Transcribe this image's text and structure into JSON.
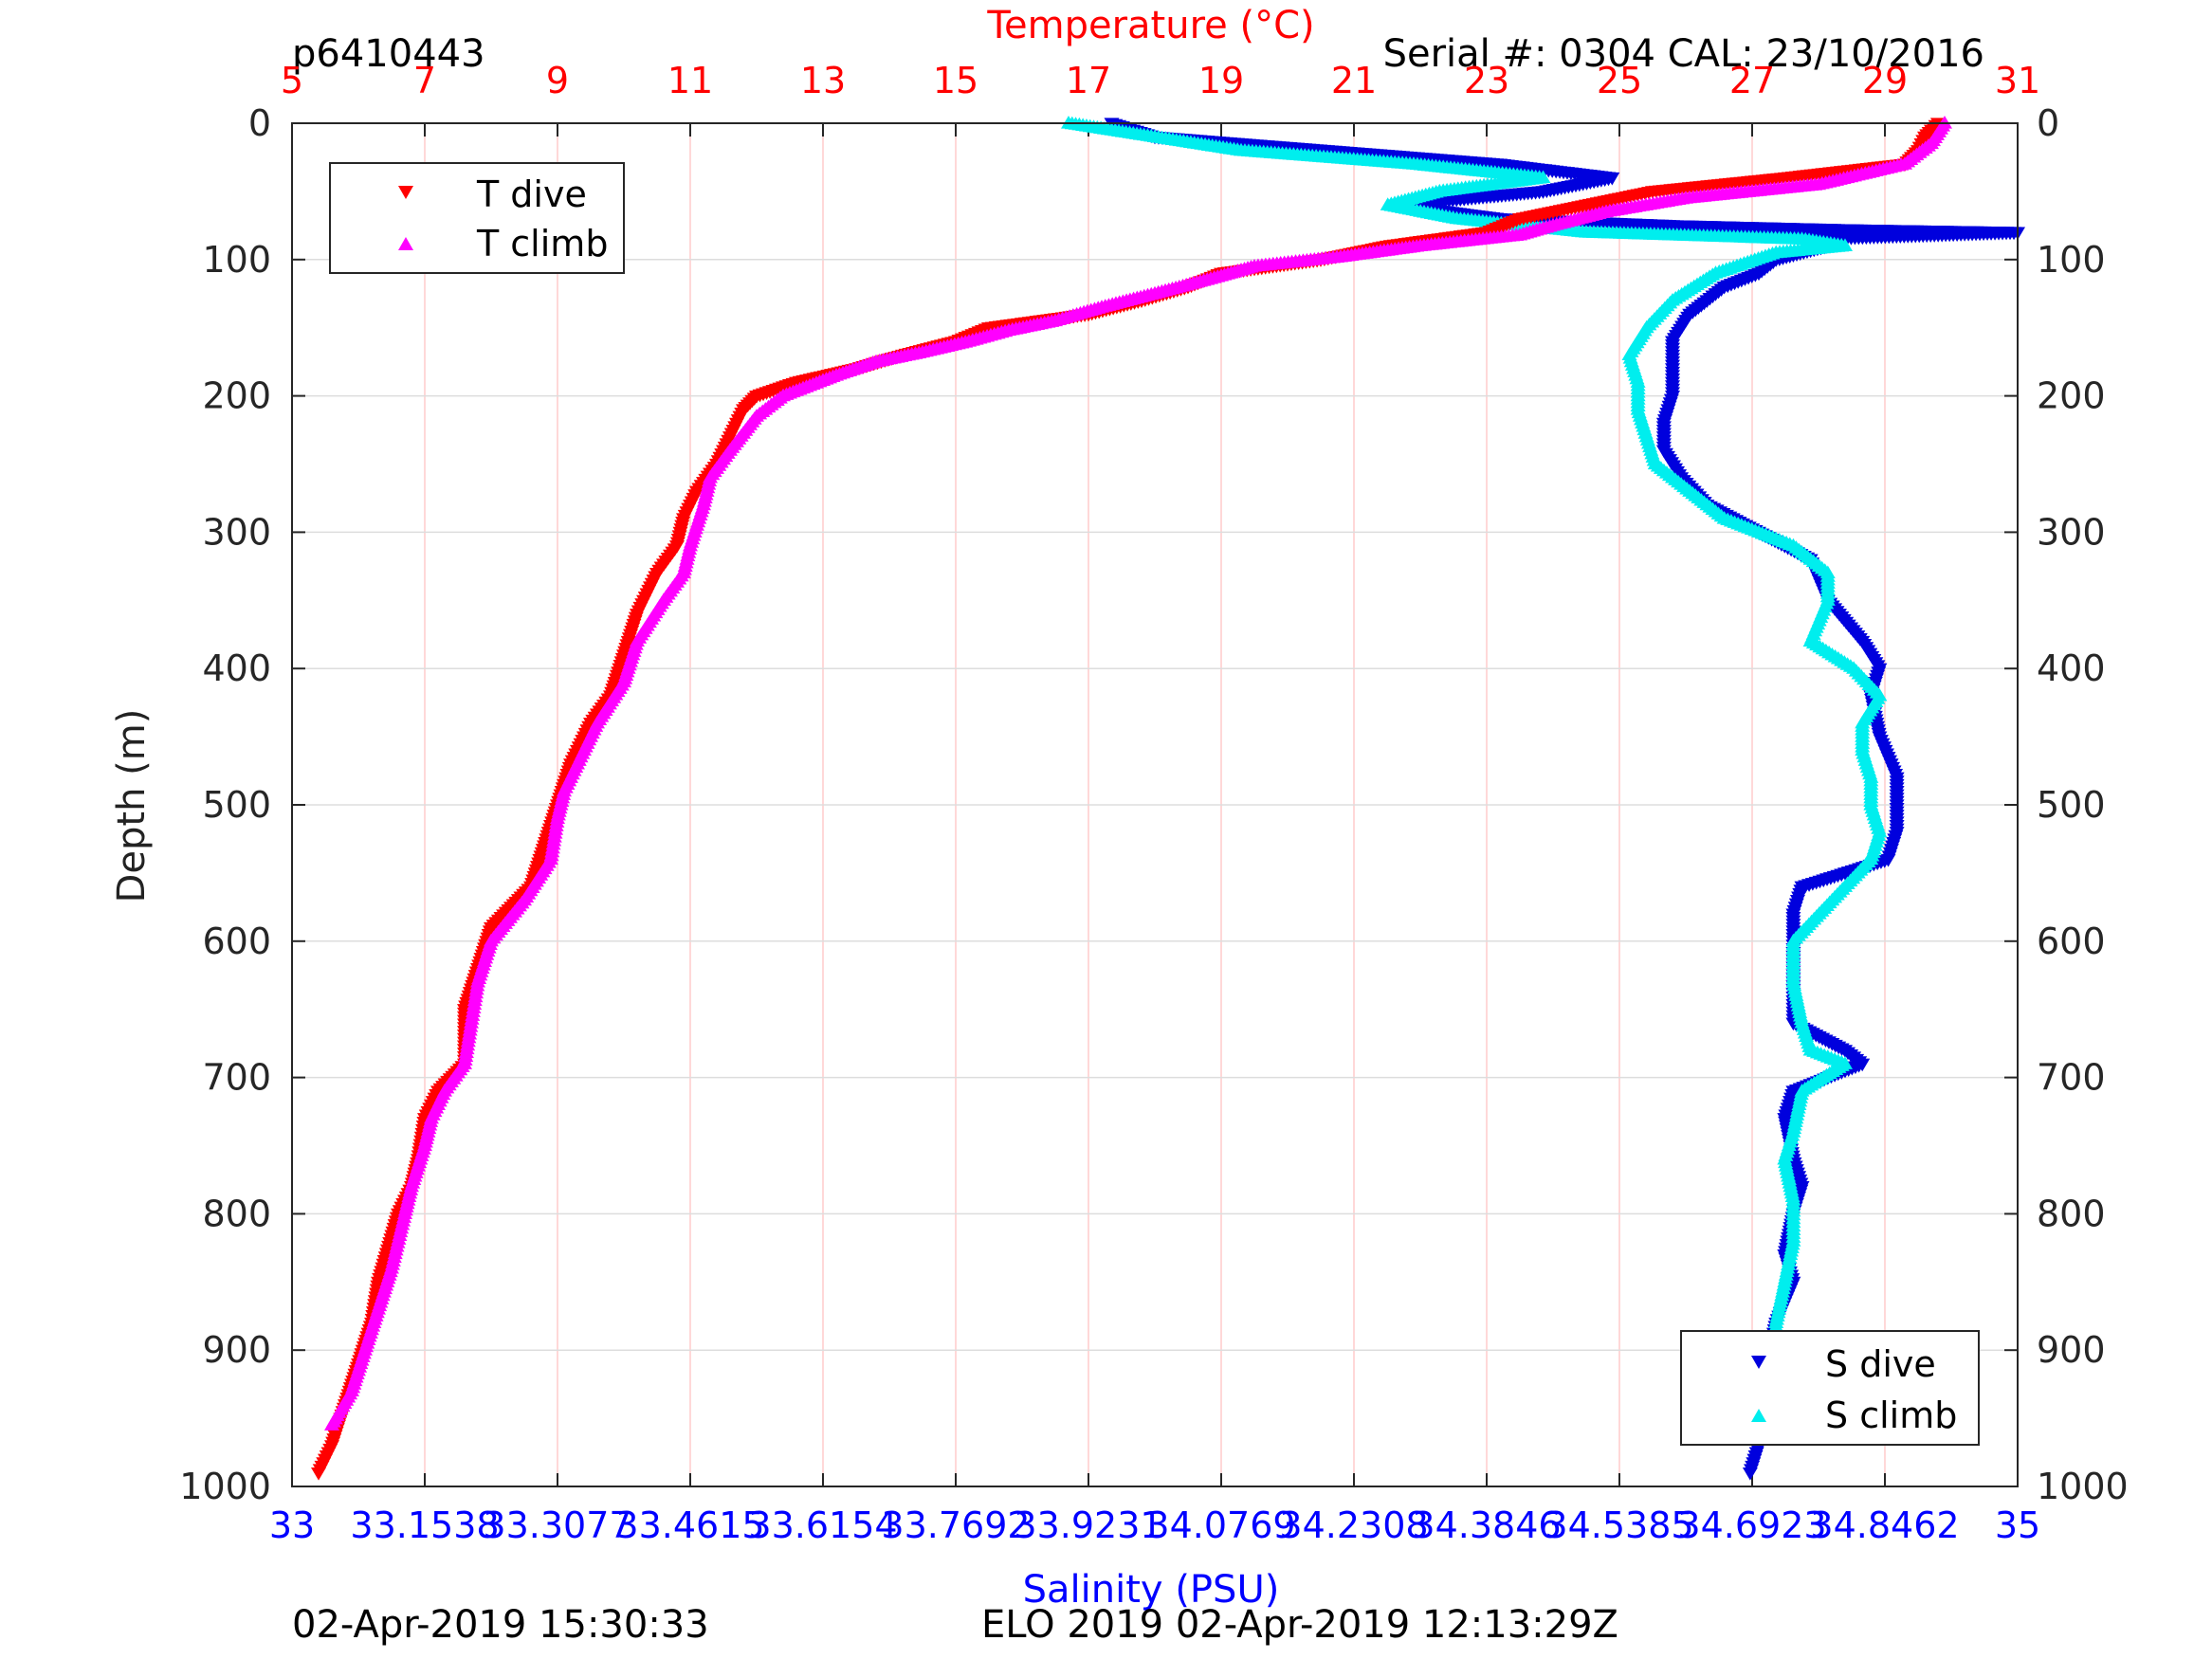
{
  "header": {
    "profile_id": "p6410443",
    "serial_cal": "Serial #: 0304  CAL: 23/10/2016"
  },
  "footer": {
    "left_timestamp": "02-Apr-2019 15:30:33",
    "center_text": "ELO 2019 02-Apr-2019 12:13:29Z"
  },
  "colors": {
    "temperature_axis": "#ff0000",
    "salinity_axis": "#0000ff",
    "t_dive": "#ff0000",
    "t_climb": "#ff00ff",
    "s_dive": "#0000dd",
    "s_climb": "#00eeee",
    "grid_vertical": "#ffcccc",
    "grid_horizontal": "#dddddd"
  },
  "chart_data": {
    "type": "scatter",
    "x_top_label": "Temperature (°C)",
    "x_top_range": [
      5,
      31
    ],
    "x_top_ticks": [
      "5",
      "7",
      "9",
      "11",
      "13",
      "15",
      "17",
      "19",
      "21",
      "23",
      "25",
      "27",
      "29",
      "31"
    ],
    "x_bottom_label": "Salinity (PSU)",
    "x_bottom_range": [
      33,
      35
    ],
    "x_bottom_ticks": [
      "33",
      "33.1538",
      "33.3077",
      "33.4615",
      "33.6154",
      "33.7692",
      "33.9231",
      "34.0769",
      "34.2308",
      "34.3846",
      "34.5385",
      "34.6923",
      "34.8462",
      "35"
    ],
    "y_label": "Depth (m)",
    "y_range": [
      0,
      1000
    ],
    "y_reversed": true,
    "y_ticks": [
      "0",
      "100",
      "200",
      "300",
      "400",
      "500",
      "600",
      "700",
      "800",
      "900",
      "1000"
    ],
    "grid": true,
    "legends": [
      {
        "position": "top-left",
        "entries": [
          "T dive",
          "T climb"
        ]
      },
      {
        "position": "bottom-right",
        "entries": [
          "S dive",
          "S climb"
        ]
      }
    ],
    "series": [
      {
        "name": "T dive",
        "axis": "temperature",
        "marker": "triangle-down",
        "points": [
          [
            29.8,
            0
          ],
          [
            29.6,
            10
          ],
          [
            29.5,
            20
          ],
          [
            29.3,
            30
          ],
          [
            27.5,
            40
          ],
          [
            25.5,
            50
          ],
          [
            24.5,
            60
          ],
          [
            23.5,
            70
          ],
          [
            23.0,
            80
          ],
          [
            21.5,
            90
          ],
          [
            20.5,
            100
          ],
          [
            19.0,
            110
          ],
          [
            18.5,
            120
          ],
          [
            17.8,
            130
          ],
          [
            17.0,
            140
          ],
          [
            15.5,
            150
          ],
          [
            15.0,
            160
          ],
          [
            14.2,
            170
          ],
          [
            13.5,
            180
          ],
          [
            12.6,
            190
          ],
          [
            12.0,
            200
          ],
          [
            11.8,
            210
          ],
          [
            11.6,
            230
          ],
          [
            11.4,
            250
          ],
          [
            11.1,
            270
          ],
          [
            10.9,
            290
          ],
          [
            10.8,
            310
          ],
          [
            10.5,
            330
          ],
          [
            10.2,
            360
          ],
          [
            10.0,
            390
          ],
          [
            9.8,
            420
          ],
          [
            9.5,
            440
          ],
          [
            9.2,
            470
          ],
          [
            9.0,
            500
          ],
          [
            8.8,
            530
          ],
          [
            8.6,
            560
          ],
          [
            8.0,
            590
          ],
          [
            7.8,
            620
          ],
          [
            7.6,
            650
          ],
          [
            7.6,
            690
          ],
          [
            7.2,
            710
          ],
          [
            7.0,
            730
          ],
          [
            6.9,
            760
          ],
          [
            6.8,
            780
          ],
          [
            6.6,
            800
          ],
          [
            6.3,
            850
          ],
          [
            6.2,
            880
          ],
          [
            6.0,
            910
          ],
          [
            5.8,
            940
          ],
          [
            5.6,
            970
          ],
          [
            5.4,
            990
          ]
        ]
      },
      {
        "name": "T climb",
        "axis": "temperature",
        "marker": "triangle-up",
        "points": [
          [
            29.9,
            0
          ],
          [
            29.7,
            15
          ],
          [
            29.3,
            30
          ],
          [
            28.0,
            45
          ],
          [
            26.0,
            55
          ],
          [
            24.8,
            65
          ],
          [
            24.0,
            75
          ],
          [
            23.5,
            82
          ],
          [
            22.0,
            90
          ],
          [
            20.8,
            98
          ],
          [
            19.5,
            105
          ],
          [
            19.0,
            112
          ],
          [
            18.0,
            125
          ],
          [
            17.2,
            135
          ],
          [
            16.5,
            145
          ],
          [
            15.8,
            152
          ],
          [
            15.2,
            160
          ],
          [
            14.5,
            168
          ],
          [
            13.8,
            175
          ],
          [
            13.2,
            185
          ],
          [
            12.4,
            200
          ],
          [
            12.0,
            215
          ],
          [
            11.6,
            240
          ],
          [
            11.3,
            260
          ],
          [
            11.2,
            280
          ],
          [
            11.0,
            310
          ],
          [
            10.9,
            330
          ],
          [
            10.6,
            350
          ],
          [
            10.2,
            380
          ],
          [
            10.0,
            410
          ],
          [
            9.6,
            440
          ],
          [
            9.4,
            460
          ],
          [
            9.1,
            490
          ],
          [
            9.0,
            510
          ],
          [
            8.9,
            540
          ],
          [
            8.5,
            570
          ],
          [
            8.0,
            600
          ],
          [
            7.8,
            630
          ],
          [
            7.7,
            660
          ],
          [
            7.6,
            690
          ],
          [
            7.3,
            710
          ],
          [
            7.1,
            730
          ],
          [
            7.0,
            750
          ],
          [
            6.8,
            780
          ],
          [
            6.7,
            800
          ],
          [
            6.5,
            840
          ],
          [
            6.3,
            870
          ],
          [
            6.1,
            900
          ],
          [
            5.9,
            930
          ],
          [
            5.6,
            955
          ]
        ]
      },
      {
        "name": "S dive",
        "axis": "salinity",
        "marker": "triangle-down",
        "points": [
          [
            33.95,
            0
          ],
          [
            34.0,
            10
          ],
          [
            34.2,
            20
          ],
          [
            34.4,
            30
          ],
          [
            34.53,
            40
          ],
          [
            34.45,
            50
          ],
          [
            34.28,
            60
          ],
          [
            34.4,
            70
          ],
          [
            34.6,
            75
          ],
          [
            34.8,
            78
          ],
          [
            35.0,
            80
          ],
          [
            34.75,
            85
          ],
          [
            34.78,
            90
          ],
          [
            34.72,
            100
          ],
          [
            34.7,
            110
          ],
          [
            34.66,
            120
          ],
          [
            34.62,
            140
          ],
          [
            34.6,
            160
          ],
          [
            34.6,
            180
          ],
          [
            34.6,
            200
          ],
          [
            34.59,
            220
          ],
          [
            34.59,
            240
          ],
          [
            34.61,
            260
          ],
          [
            34.64,
            280
          ],
          [
            34.7,
            300
          ],
          [
            34.76,
            320
          ],
          [
            34.78,
            350
          ],
          [
            34.82,
            380
          ],
          [
            34.84,
            400
          ],
          [
            34.83,
            420
          ],
          [
            34.84,
            450
          ],
          [
            34.86,
            480
          ],
          [
            34.86,
            500
          ],
          [
            34.86,
            520
          ],
          [
            34.85,
            540
          ],
          [
            34.75,
            560
          ],
          [
            34.74,
            580
          ],
          [
            34.74,
            600
          ],
          [
            34.74,
            630
          ],
          [
            34.74,
            660
          ],
          [
            34.8,
            680
          ],
          [
            34.82,
            690
          ],
          [
            34.74,
            710
          ],
          [
            34.73,
            730
          ],
          [
            34.74,
            760
          ],
          [
            34.75,
            780
          ],
          [
            34.74,
            800
          ],
          [
            34.73,
            830
          ],
          [
            34.74,
            850
          ],
          [
            34.72,
            880
          ],
          [
            34.71,
            910
          ],
          [
            34.7,
            940
          ],
          [
            34.7,
            970
          ],
          [
            34.69,
            990
          ]
        ]
      },
      {
        "name": "S climb",
        "axis": "salinity",
        "marker": "triangle-up",
        "points": [
          [
            33.9,
            0
          ],
          [
            34.0,
            10
          ],
          [
            34.1,
            20
          ],
          [
            34.3,
            30
          ],
          [
            34.45,
            40
          ],
          [
            34.33,
            50
          ],
          [
            34.27,
            60
          ],
          [
            34.35,
            70
          ],
          [
            34.5,
            80
          ],
          [
            34.75,
            85
          ],
          [
            34.8,
            90
          ],
          [
            34.72,
            95
          ],
          [
            34.65,
            110
          ],
          [
            34.6,
            130
          ],
          [
            34.57,
            150
          ],
          [
            34.55,
            170
          ],
          [
            34.56,
            190
          ],
          [
            34.56,
            210
          ],
          [
            34.57,
            230
          ],
          [
            34.58,
            250
          ],
          [
            34.62,
            270
          ],
          [
            34.66,
            290
          ],
          [
            34.74,
            310
          ],
          [
            34.78,
            330
          ],
          [
            34.78,
            350
          ],
          [
            34.76,
            380
          ],
          [
            34.81,
            400
          ],
          [
            34.84,
            420
          ],
          [
            34.82,
            440
          ],
          [
            34.82,
            460
          ],
          [
            34.83,
            480
          ],
          [
            34.83,
            500
          ],
          [
            34.84,
            520
          ],
          [
            34.83,
            540
          ],
          [
            34.8,
            560
          ],
          [
            34.77,
            580
          ],
          [
            34.74,
            600
          ],
          [
            34.74,
            630
          ],
          [
            34.75,
            660
          ],
          [
            34.76,
            680
          ],
          [
            34.8,
            690
          ],
          [
            34.75,
            710
          ],
          [
            34.74,
            740
          ],
          [
            34.73,
            760
          ],
          [
            34.74,
            790
          ],
          [
            34.74,
            820
          ],
          [
            34.73,
            850
          ],
          [
            34.72,
            880
          ],
          [
            34.72,
            910
          ],
          [
            34.71,
            940
          ],
          [
            34.71,
            955
          ]
        ]
      }
    ]
  }
}
